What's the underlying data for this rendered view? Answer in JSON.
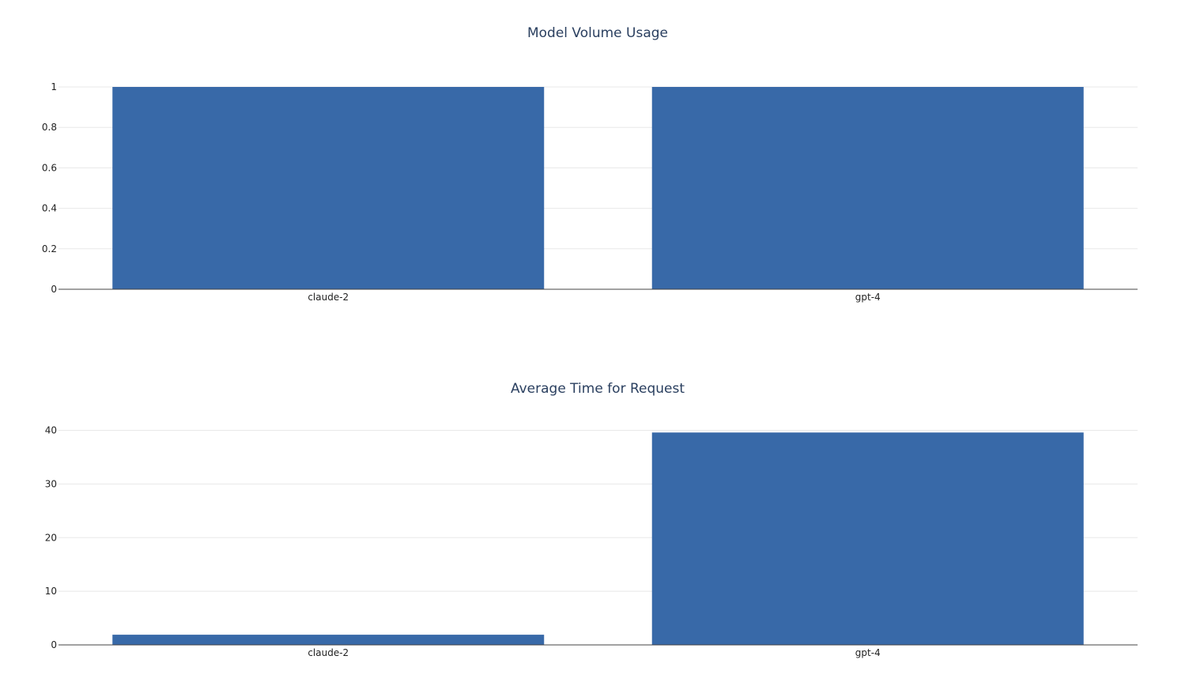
{
  "chart_data": [
    {
      "type": "bar",
      "title": "Model Volume Usage",
      "xlabel": "",
      "ylabel": "",
      "categories": [
        "claude-2",
        "gpt-4"
      ],
      "values": [
        1,
        1
      ],
      "ylim": [
        0,
        1
      ],
      "yticks": [
        0,
        0.2,
        0.4,
        0.6,
        0.8,
        1
      ],
      "ytick_labels": [
        "0",
        "0.2",
        "0.4",
        "0.6",
        "0.8",
        "1"
      ],
      "grid": true,
      "bar_color": "#3869a8"
    },
    {
      "type": "bar",
      "title": "Average Time for Request",
      "xlabel": "",
      "ylabel": "",
      "categories": [
        "claude-2",
        "gpt-4"
      ],
      "values": [
        1.9,
        39.6
      ],
      "ylim": [
        0,
        41.7
      ],
      "yticks": [
        0,
        10,
        20,
        30,
        40
      ],
      "ytick_labels": [
        "0",
        "10",
        "20",
        "30",
        "40"
      ],
      "grid": true,
      "bar_color": "#3869a8"
    }
  ]
}
